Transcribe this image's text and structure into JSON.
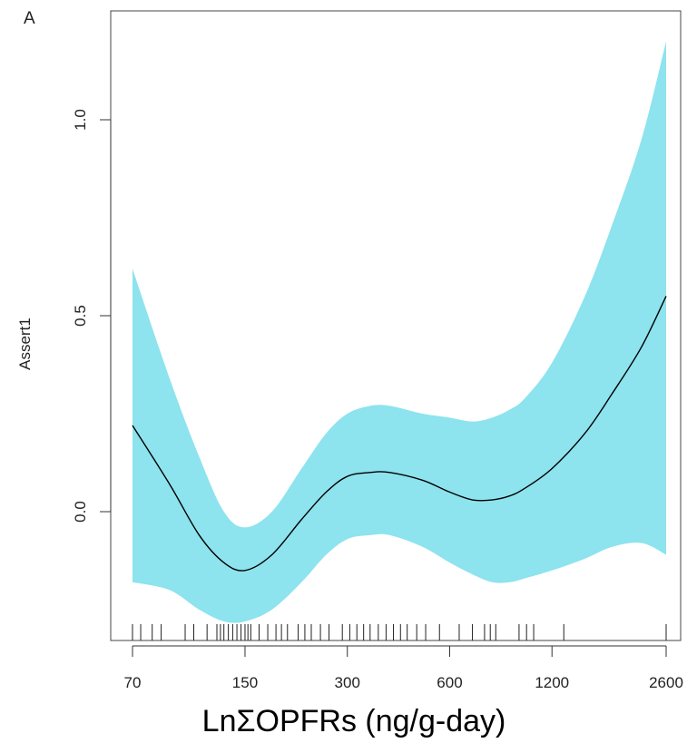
{
  "chart_data": {
    "type": "line",
    "panel_label": "A",
    "xlabel": "LnΣOPFRs (ng/g-day)",
    "ylabel": "Assert1",
    "x_scale": "log",
    "x_ticks": [
      70,
      150,
      300,
      600,
      1200,
      2600
    ],
    "x_tick_labels": [
      "70",
      "150",
      "300",
      "600",
      "1200",
      "2600"
    ],
    "y_ticks": [
      0.0,
      0.5,
      1.0
    ],
    "y_tick_labels": [
      "0.0",
      "0.5",
      "1.0"
    ],
    "xlim": [
      65,
      2800
    ],
    "ylim": [
      -0.33,
      1.32
    ],
    "grid": false,
    "legend": "none",
    "colors": {
      "band": "#8de3ee",
      "line": "#000000",
      "axis": "#333333"
    },
    "series": [
      {
        "x": [
          70,
          90,
          110,
          130,
          150,
          180,
          220,
          260,
          300,
          350,
          400,
          500,
          600,
          700,
          800,
          900,
          1000,
          1200,
          1500,
          1800,
          2200,
          2600
        ],
        "y": [
          0.22,
          0.07,
          -0.06,
          -0.13,
          -0.15,
          -0.11,
          -0.02,
          0.05,
          0.09,
          0.1,
          0.1,
          0.08,
          0.05,
          0.03,
          0.03,
          0.04,
          0.06,
          0.11,
          0.2,
          0.3,
          0.42,
          0.55
        ]
      }
    ],
    "confidence_band": {
      "x": [
        70,
        90,
        110,
        130,
        150,
        180,
        220,
        260,
        300,
        350,
        400,
        500,
        600,
        700,
        800,
        900,
        1000,
        1200,
        1500,
        1800,
        2200,
        2600
      ],
      "lower": [
        -0.18,
        -0.2,
        -0.25,
        -0.28,
        -0.28,
        -0.25,
        -0.18,
        -0.11,
        -0.07,
        -0.06,
        -0.06,
        -0.09,
        -0.13,
        -0.16,
        -0.18,
        -0.18,
        -0.17,
        -0.15,
        -0.12,
        -0.09,
        -0.08,
        -0.11
      ],
      "upper": [
        0.62,
        0.34,
        0.14,
        0.0,
        -0.04,
        0.0,
        0.11,
        0.2,
        0.25,
        0.27,
        0.27,
        0.25,
        0.24,
        0.23,
        0.24,
        0.26,
        0.29,
        0.38,
        0.55,
        0.73,
        0.95,
        1.2
      ]
    },
    "rug": [
      70,
      74,
      80,
      85,
      100,
      106,
      116,
      124,
      127,
      130,
      134,
      138,
      142,
      146,
      150,
      153,
      156,
      165,
      175,
      185,
      192,
      200,
      215,
      225,
      235,
      250,
      265,
      290,
      305,
      320,
      335,
      350,
      370,
      390,
      410,
      430,
      450,
      480,
      510,
      560,
      640,
      700,
      760,
      790,
      820,
      960,
      1010,
      1060,
      1300,
      2600
    ]
  }
}
